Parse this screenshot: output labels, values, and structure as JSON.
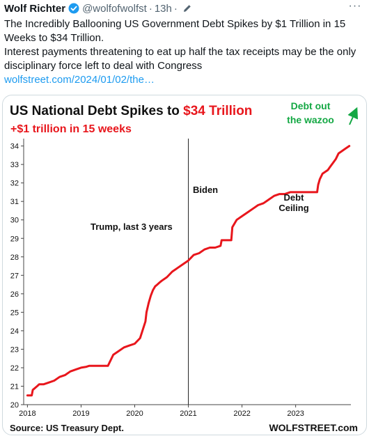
{
  "tweet": {
    "author_name": "Wolf Richter",
    "handle": "@wolfofwolfst",
    "time_sep": "·",
    "time": "13h",
    "time_trail": "·",
    "more_label": "···",
    "text_line1": "The Incredibly Ballooning US Government Debt Spikes by $1 Trillion in 15 Weeks to $34 Trillion.",
    "text_line2": "Interest payments threatening to eat up half the tax receipts may be the only disciplinary force left to deal with Congress",
    "link_text": "wolfstreet.com/2024/01/02/the…",
    "verified_color": "#1d9bf0"
  },
  "chart_data": {
    "type": "line",
    "title_prefix": "US National Debt Spikes to ",
    "title_highlight": "$34 Trillion",
    "subtitle": "+$1 trillion  in 15 weeks",
    "xlabel": "",
    "ylabel": "",
    "x_ticks": [
      2018,
      2019,
      2020,
      2021,
      2022,
      2023
    ],
    "xlim": [
      2017.93,
      2024.03
    ],
    "y_ticks": [
      20,
      21,
      22,
      23,
      24,
      25,
      26,
      27,
      28,
      29,
      30,
      31,
      32,
      33,
      34
    ],
    "ylim": [
      20,
      34.4
    ],
    "grid": false,
    "legend": "none",
    "line_color": "#e8161c",
    "series": [
      {
        "x": [
          2018.0,
          2018.08,
          2018.1,
          2018.18,
          2018.22,
          2018.3,
          2018.4,
          2018.5,
          2018.6,
          2018.7,
          2018.8,
          2018.9,
          2019.0,
          2019.1,
          2019.15,
          2019.5,
          2019.6,
          2019.7,
          2019.8,
          2019.9,
          2020.0,
          2020.1,
          2020.2,
          2020.22,
          2020.26,
          2020.3,
          2020.34,
          2020.38,
          2020.42,
          2020.46,
          2020.5,
          2020.6,
          2020.7,
          2020.8,
          2020.9,
          2021.0,
          2021.1,
          2021.2,
          2021.3,
          2021.4,
          2021.5,
          2021.6,
          2021.62,
          2021.8,
          2021.82,
          2021.9,
          2022.0,
          2022.1,
          2022.2,
          2022.3,
          2022.4,
          2022.5,
          2022.6,
          2022.7,
          2022.8,
          2022.9,
          2023.0,
          2023.1,
          2023.3,
          2023.4,
          2023.42,
          2023.45,
          2023.5,
          2023.6,
          2023.65,
          2023.7,
          2023.75,
          2023.8,
          2023.85,
          2023.9,
          2023.95,
          2024.0
        ],
        "y": [
          20.5,
          20.5,
          20.8,
          21.0,
          21.1,
          21.1,
          21.2,
          21.3,
          21.5,
          21.6,
          21.8,
          21.9,
          22.0,
          22.05,
          22.1,
          22.1,
          22.7,
          22.9,
          23.1,
          23.2,
          23.3,
          23.6,
          24.5,
          25.0,
          25.5,
          25.9,
          26.2,
          26.4,
          26.5,
          26.6,
          26.7,
          26.9,
          27.2,
          27.4,
          27.6,
          27.8,
          28.1,
          28.2,
          28.4,
          28.5,
          28.5,
          28.6,
          28.9,
          28.9,
          29.6,
          30.0,
          30.2,
          30.4,
          30.6,
          30.8,
          30.9,
          31.1,
          31.3,
          31.4,
          31.4,
          31.5,
          31.5,
          31.5,
          31.5,
          31.5,
          31.9,
          32.2,
          32.5,
          32.7,
          32.9,
          33.1,
          33.3,
          33.6,
          33.7,
          33.8,
          33.9,
          34.0
        ]
      }
    ],
    "divider_year": 2021,
    "annotations": {
      "trump": "Trump, last 3 years",
      "biden": "Biden",
      "debt_ceiling_1": "Debt",
      "debt_ceiling_2": "Ceiling",
      "wazoo_1": "Debt out",
      "wazoo_2": "the wazoo",
      "wazoo_color": "#14a844"
    },
    "source": "Source: US Treasury Dept.",
    "brand": "WOLFSTREET.com"
  }
}
